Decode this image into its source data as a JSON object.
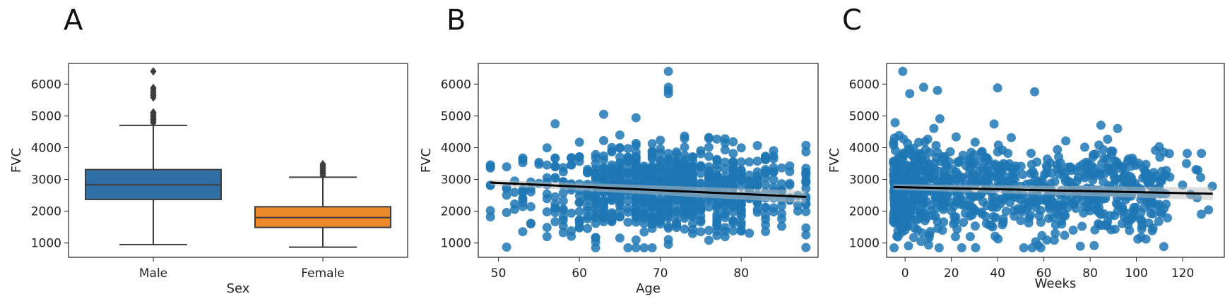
{
  "chart_data": [
    {
      "panel": "A",
      "type": "box",
      "xlabel": "Sex",
      "ylabel": "FVC",
      "yticks": [
        1000,
        2000,
        3000,
        4000,
        5000,
        6000
      ],
      "ylim": [
        550,
        6650
      ],
      "categories": [
        "Male",
        "Female"
      ],
      "colors": [
        "#2f6fa5",
        "#ec8a2b"
      ],
      "boxes": [
        {
          "category": "Male",
          "whislo": 950,
          "q1": 2370,
          "median": 2830,
          "q3": 3310,
          "whishi": 4700,
          "fliers": [
            4780,
            4830,
            4880,
            4920,
            4970,
            5010,
            5060,
            5110,
            5580,
            5640,
            5700,
            5760,
            5820,
            5880,
            6400
          ]
        },
        {
          "category": "Female",
          "whislo": 870,
          "q1": 1490,
          "median": 1800,
          "q3": 2140,
          "whishi": 3070,
          "fliers": [
            3130,
            3180,
            3230,
            3280,
            3330,
            3380,
            3430,
            3480
          ]
        }
      ]
    },
    {
      "panel": "B",
      "type": "scatter",
      "xlabel": "Age",
      "ylabel": "FVC",
      "xticks": [
        50,
        60,
        70,
        80
      ],
      "yticks": [
        1000,
        2000,
        3000,
        4000,
        5000,
        6000
      ],
      "xlim": [
        47.5,
        89.5
      ],
      "ylim": [
        550,
        6650
      ],
      "color": "#1f77b4",
      "x_range": [
        49,
        88
      ],
      "y_range": [
        850,
        6400
      ],
      "regression": {
        "x": [
          49,
          88
        ],
        "y": [
          2900,
          2450
        ]
      }
    },
    {
      "panel": "C",
      "type": "scatter",
      "xlabel": "Weeks",
      "ylabel": "FVC",
      "xticks": [
        0,
        20,
        40,
        60,
        80,
        100,
        120
      ],
      "yticks": [
        1000,
        2000,
        3000,
        4000,
        5000,
        6000
      ],
      "xlim": [
        -8,
        138
      ],
      "ylim": [
        550,
        6650
      ],
      "color": "#1f77b4",
      "x_range": [
        -5,
        133
      ],
      "y_range": [
        850,
        6400
      ],
      "regression": {
        "x": [
          -5,
          133
        ],
        "y": [
          2760,
          2550
        ]
      }
    }
  ]
}
